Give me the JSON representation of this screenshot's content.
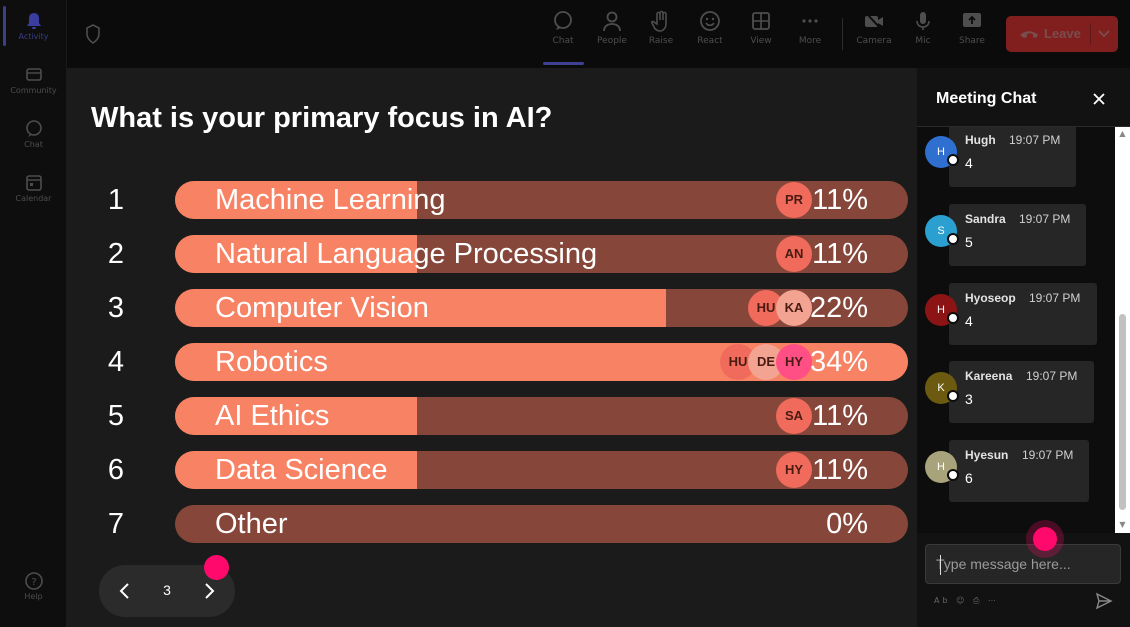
{
  "rail": {
    "items": [
      {
        "label": "Activity",
        "icon": "bell-icon"
      },
      {
        "label": "Community",
        "icon": "community-icon"
      },
      {
        "label": "Chat",
        "icon": "chat-icon"
      },
      {
        "label": "Calendar",
        "icon": "calendar-icon"
      },
      {
        "label": "Help",
        "icon": "help-icon"
      }
    ]
  },
  "toolbar": {
    "buttons": [
      {
        "label": "Chat",
        "icon": "chat-icon"
      },
      {
        "label": "People",
        "icon": "people-icon"
      },
      {
        "label": "Raise",
        "icon": "hand-icon"
      },
      {
        "label": "React",
        "icon": "smiley-icon"
      },
      {
        "label": "View",
        "icon": "grid-icon"
      },
      {
        "label": "More",
        "icon": "more-icon"
      },
      {
        "label": "Camera",
        "icon": "camera-off-icon"
      },
      {
        "label": "Mic",
        "icon": "mic-icon"
      },
      {
        "label": "Share",
        "icon": "share-icon"
      }
    ],
    "leave_label": "Leave"
  },
  "poll": {
    "question": "What is your primary focus in AI?",
    "options": [
      {
        "num": "1",
        "label": "Machine Learning",
        "percent": "11%",
        "fill": 0.33,
        "voters": [
          "PR"
        ]
      },
      {
        "num": "2",
        "label": "Natural Language Processing",
        "percent": "11%",
        "fill": 0.33,
        "voters": [
          "AN"
        ]
      },
      {
        "num": "3",
        "label": "Computer Vision",
        "percent": "22%",
        "fill": 0.67,
        "voters": [
          "HU",
          "KA"
        ]
      },
      {
        "num": "4",
        "label": "Robotics",
        "percent": "34%",
        "fill": 1.0,
        "voters": [
          "HU",
          "DE",
          "HY"
        ]
      },
      {
        "num": "5",
        "label": "AI Ethics",
        "percent": "11%",
        "fill": 0.33,
        "voters": [
          "SA"
        ]
      },
      {
        "num": "6",
        "label": "Data Science",
        "percent": "11%",
        "fill": 0.33,
        "voters": [
          "HY"
        ]
      },
      {
        "num": "7",
        "label": "Other",
        "percent": "0%",
        "fill": 0.0,
        "voters": []
      }
    ],
    "page": "3"
  },
  "chat": {
    "title": "Meeting Chat",
    "messages": [
      {
        "initial": "H",
        "name": "Hugh",
        "time": "19:07 PM",
        "text": "4",
        "color": "#2f6fd0"
      },
      {
        "initial": "S",
        "name": "Sandra",
        "time": "19:07 PM",
        "text": "5",
        "color": "#2a9fd0"
      },
      {
        "initial": "H",
        "name": "Hyoseop",
        "time": "19:07 PM",
        "text": "4",
        "color": "#8c1414"
      },
      {
        "initial": "K",
        "name": "Kareena",
        "time": "19:07 PM",
        "text": "3",
        "color": "#6b5a10"
      },
      {
        "initial": "H",
        "name": "Hyesun",
        "time": "19:07 PM",
        "text": "6",
        "color": "#a8a37a"
      }
    ],
    "placeholder": "Type message here..."
  },
  "colors": {
    "bar_fill": "#f78264",
    "bar_track": "#86473a",
    "leave": "#811f1f",
    "accent_dot": "#ff0a6c"
  }
}
